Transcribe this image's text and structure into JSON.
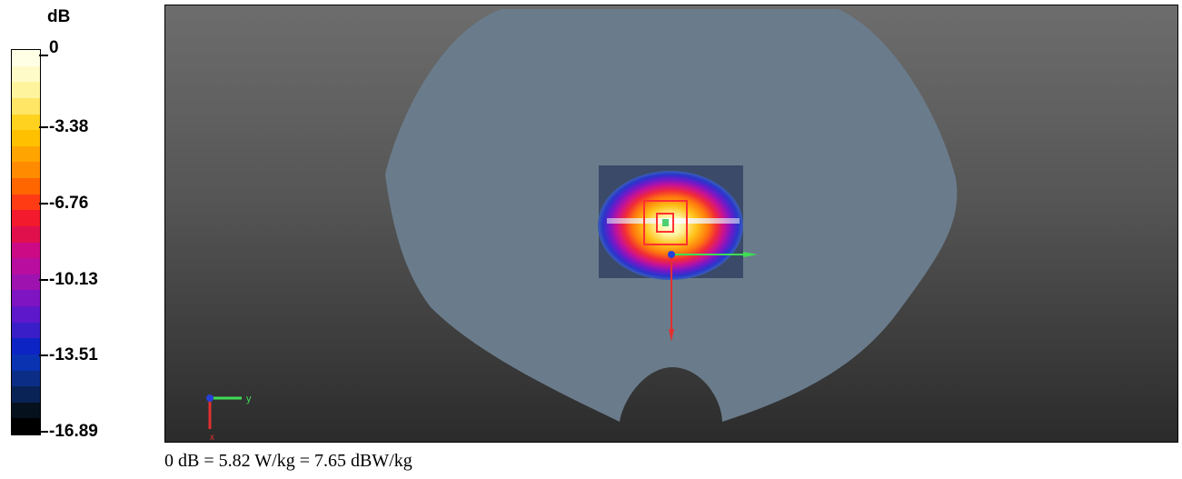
{
  "legend": {
    "unit": "dB",
    "ticks": [
      "0",
      "-3.38",
      "-6.76",
      "-10.13",
      "-13.51",
      "-16.89"
    ],
    "color_bands": [
      "#ffffe6",
      "#fffbc8",
      "#fff49e",
      "#ffe665",
      "#ffd21f",
      "#ffc000",
      "#ffa400",
      "#ff8b00",
      "#ff6600",
      "#ff3b14",
      "#f21a2c",
      "#e0104d",
      "#cc0a86",
      "#b80d9e",
      "#9e12b0",
      "#7f14c2",
      "#5e18cc",
      "#3a1ec8",
      "#0d24c4",
      "#0a33b2",
      "#0b2d86",
      "#0a2356",
      "#06111e",
      "#000000"
    ]
  },
  "viewport": {
    "axis_triad_label": "y",
    "axis_triad_label_x": "x",
    "colors": {
      "phantom": "#6a7c8c",
      "probe_square": "#ff3030",
      "axis_x": "#e23030",
      "axis_y": "#3fdd55",
      "origin": "#2540d8"
    }
  },
  "caption": "0 dB = 5.82 W/kg = 7.65 dBW/kg"
}
